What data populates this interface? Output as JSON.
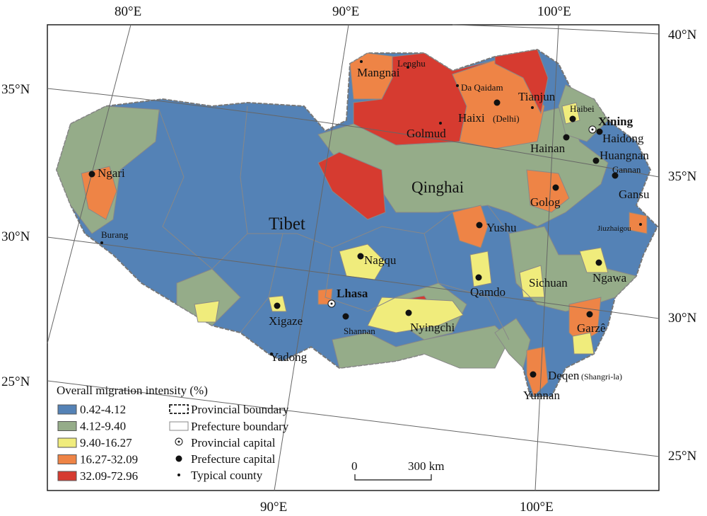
{
  "graticule": {
    "top": [
      "80°E",
      "90°E",
      "100°E"
    ],
    "left": [
      "35°N",
      "30°N",
      "25°N"
    ],
    "right": [
      "40°N",
      "35°N",
      "30°N",
      "25°N"
    ],
    "bottom": [
      "90°E",
      "100°E"
    ]
  },
  "places": [
    {
      "name": "Mangnai"
    },
    {
      "name": "Lenghu"
    },
    {
      "name": "Da Qaidam"
    },
    {
      "name": "Tianjun"
    },
    {
      "name": "Haixi",
      "note": "(Delhi)"
    },
    {
      "name": "Golmud"
    },
    {
      "name": "Haibei"
    },
    {
      "name": "Xining"
    },
    {
      "name": "Haidong"
    },
    {
      "name": "Hainan"
    },
    {
      "name": "Huangnan"
    },
    {
      "name": "Gannan"
    },
    {
      "name": "Gansu"
    },
    {
      "name": "Ngari"
    },
    {
      "name": "Qinghai"
    },
    {
      "name": "Golog"
    },
    {
      "name": "Tibet"
    },
    {
      "name": "Burang"
    },
    {
      "name": "Yushu"
    },
    {
      "name": "Jiuzhaigou"
    },
    {
      "name": "Nagqu"
    },
    {
      "name": "Sichuan"
    },
    {
      "name": "Ngawa"
    },
    {
      "name": "Qamdo"
    },
    {
      "name": "Lhasa"
    },
    {
      "name": "Xigaze"
    },
    {
      "name": "Shannan"
    },
    {
      "name": "Nyingchi"
    },
    {
      "name": "Garzê"
    },
    {
      "name": "Yadong"
    },
    {
      "name": "Deqen",
      "note": "(Shangri-la)"
    },
    {
      "name": "Yunnan"
    }
  ],
  "legend": {
    "title": "Overall migration intensity (%)",
    "classes": [
      {
        "label": "0.42-4.12",
        "color": "#5482b6"
      },
      {
        "label": "4.12-9.40",
        "color": "#95ac89"
      },
      {
        "label": "9.40-16.27",
        "color": "#f0ec7c"
      },
      {
        "label": "16.27-32.09",
        "color": "#ee8446"
      },
      {
        "label": "32.09-72.96",
        "color": "#d63b30"
      }
    ],
    "symbols": [
      "Provincial boundary",
      "Prefecture boundary",
      "Provincial capital",
      "Prefecture capital",
      "Typical county"
    ]
  },
  "scale_bar": {
    "start": "0",
    "end": "300 km"
  }
}
